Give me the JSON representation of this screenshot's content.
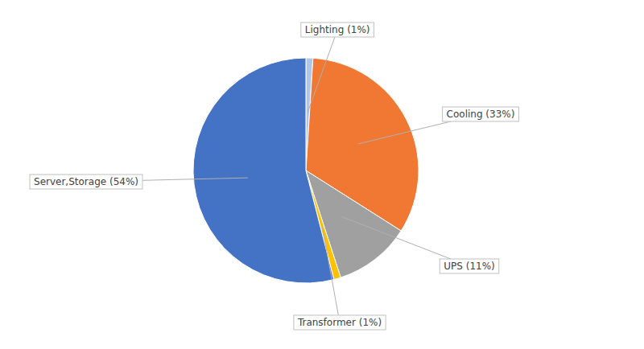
{
  "chart_data": {
    "type": "pie",
    "categories": [
      "Lighting (1%)",
      "Cooling (33%)",
      "UPS (11%)",
      "Transformer (1%)",
      "Server,Storage (54%)"
    ],
    "values": [
      1,
      33,
      11,
      1,
      54
    ],
    "colors": [
      "#aec6e8",
      "#f07832",
      "#a0a0a0",
      "#ffc000",
      "#4472c4"
    ]
  }
}
